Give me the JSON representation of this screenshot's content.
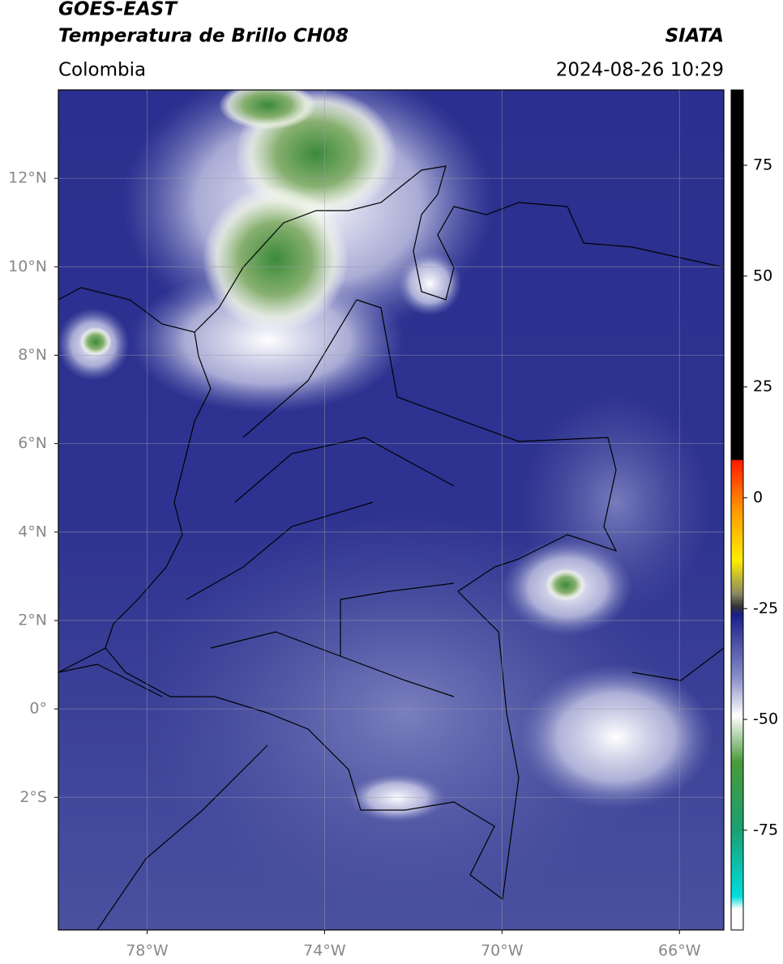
{
  "header": {
    "title": "GOES-EAST",
    "subtitle": "Temperatura de Brillo CH08",
    "source": "SIATA",
    "region": "Colombia",
    "datetime": "2024-08-26 10:29"
  },
  "map": {
    "xlim": [
      -80,
      -65
    ],
    "ylim": [
      -5,
      14
    ],
    "xticks": [
      {
        "value": -78,
        "label": "78°W"
      },
      {
        "value": -74,
        "label": "74°W"
      },
      {
        "value": -70,
        "label": "70°W"
      },
      {
        "value": -66,
        "label": "66°W"
      }
    ],
    "yticks": [
      {
        "value": 12,
        "label": "12°N"
      },
      {
        "value": 10,
        "label": "10°N"
      },
      {
        "value": 8,
        "label": "8°N"
      },
      {
        "value": 6,
        "label": "6°N"
      },
      {
        "value": 4,
        "label": "4°N"
      },
      {
        "value": 2,
        "label": "2°N"
      },
      {
        "value": 0,
        "label": "0°"
      },
      {
        "value": -2,
        "label": "2°S"
      }
    ]
  },
  "colorbar": {
    "lim": [
      -97.5,
      92
    ],
    "ticks": [
      75,
      50,
      25,
      0,
      -25,
      -50,
      -75
    ]
  }
}
